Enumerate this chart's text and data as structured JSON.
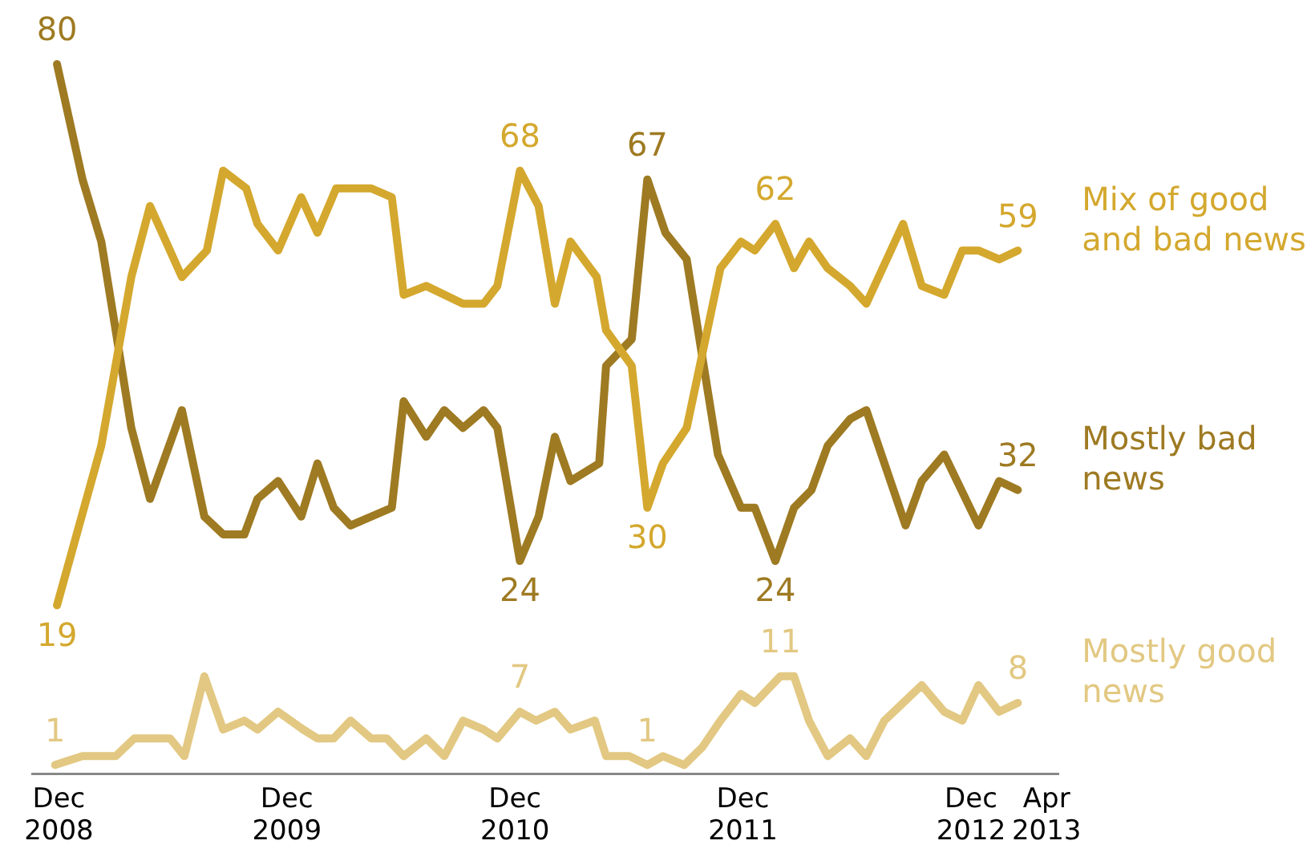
{
  "chart_data": {
    "type": "line",
    "marker": "none",
    "tick_labels": "x",
    "xlim": [
      "2008-10-19",
      "2013-04-20"
    ],
    "xticks": [
      {
        "value": "2008-12",
        "label": "Dec 2008"
      },
      {
        "value": "2009-12",
        "label": "Dec 2009"
      },
      {
        "value": "2010-12",
        "label": "Dec 2010"
      },
      {
        "value": "2011-12",
        "label": "Dec 2011"
      },
      {
        "value": "2012-12",
        "label": "Dec 2012"
      },
      {
        "value": "2013-04",
        "label": "Apr 2013"
      }
    ],
    "series": [
      {
        "name": "Mix of good and bad news",
        "color": "#d4a82e",
        "x": [
          "2008-11-28",
          "2009-02-07",
          "2009-03-27",
          "2009-04-26",
          "2009-06-16",
          "2009-07-26",
          "2009-08-21",
          "2009-09-27",
          "2009-10-15",
          "2009-11-17",
          "2009-12-24",
          "2010-01-19",
          "2010-02-18",
          "2010-04-15",
          "2010-05-18",
          "2010-06-06",
          "2010-07-12",
          "2010-09-09",
          "2010-10-12",
          "2010-11-03",
          "2010-12-09",
          "2011-01-08",
          "2011-02-03",
          "2011-02-28",
          "2011-04-11",
          "2011-04-26",
          "2011-06-06",
          "2011-07-01",
          "2011-07-26",
          "2011-09-02",
          "2011-10-26",
          "2011-11-28",
          "2011-12-20",
          "2012-01-22",
          "2012-02-21",
          "2012-03-16",
          "2012-04-15",
          "2012-05-21",
          "2012-06-16",
          "2012-08-14",
          "2012-09-13",
          "2012-10-19",
          "2012-11-17",
          "2012-12-13",
          "2013-01-15",
          "2013-02-14"
        ],
        "values": [
          19,
          37,
          56,
          64,
          56,
          59,
          68,
          66,
          62,
          59,
          65,
          61,
          66,
          66,
          65,
          54,
          55,
          53,
          53,
          55,
          68,
          64,
          53,
          60,
          56,
          50,
          46,
          30,
          35,
          39,
          57,
          60,
          59,
          62,
          57,
          60,
          57,
          55,
          53,
          62,
          55,
          54,
          59,
          59,
          58,
          59
        ],
        "value_labels": [
          "19",
          null,
          null,
          null,
          null,
          null,
          null,
          null,
          null,
          null,
          null,
          null,
          null,
          null,
          null,
          null,
          null,
          null,
          null,
          null,
          "68",
          null,
          null,
          null,
          null,
          null,
          null,
          "30",
          null,
          null,
          null,
          null,
          null,
          "62",
          null,
          null,
          null,
          null,
          null,
          null,
          null,
          null,
          null,
          null,
          null,
          "59"
        ]
      },
      {
        "name": "Mostly bad news",
        "color": "#9e7a22",
        "x": [
          "2008-11-28",
          "2009-01-08",
          "2009-02-07",
          "2009-03-02",
          "2009-03-27",
          "2009-04-26",
          "2009-06-16",
          "2009-07-22",
          "2009-08-21",
          "2009-09-24",
          "2009-10-15",
          "2009-11-17",
          "2009-12-24",
          "2010-01-19",
          "2010-02-14",
          "2010-03-13",
          "2010-05-18",
          "2010-06-06",
          "2010-07-12",
          "2010-08-10",
          "2010-09-09",
          "2010-10-12",
          "2010-11-03",
          "2010-12-09",
          "2011-01-08",
          "2011-02-03",
          "2011-02-28",
          "2011-04-15",
          "2011-04-26",
          "2011-06-06",
          "2011-07-01",
          "2011-07-30",
          "2011-09-02",
          "2011-10-22",
          "2011-11-28",
          "2011-12-20",
          "2012-01-22",
          "2012-02-21",
          "2012-03-20",
          "2012-04-15",
          "2012-05-21",
          "2012-06-16",
          "2012-07-15",
          "2012-08-18",
          "2012-09-13",
          "2012-10-19",
          "2012-12-13",
          "2013-01-15",
          "2013-02-14"
        ],
        "values": [
          80,
          67,
          60,
          50,
          39,
          31,
          41,
          29,
          27,
          27,
          31,
          33,
          29,
          35,
          30,
          28,
          30,
          42,
          38,
          41,
          39,
          41,
          39,
          24,
          29,
          38,
          33,
          35,
          46,
          49,
          67,
          61,
          58,
          36,
          30,
          30,
          24,
          30,
          32,
          37,
          40,
          41,
          35,
          28,
          33,
          36,
          28,
          33,
          32
        ],
        "value_labels": [
          "80",
          null,
          null,
          null,
          null,
          null,
          null,
          null,
          null,
          null,
          null,
          null,
          null,
          null,
          null,
          null,
          null,
          null,
          null,
          null,
          null,
          null,
          null,
          "24",
          null,
          null,
          null,
          null,
          null,
          null,
          "67",
          null,
          null,
          null,
          null,
          null,
          "24",
          null,
          null,
          null,
          null,
          null,
          null,
          null,
          null,
          null,
          null,
          null,
          "32"
        ]
      },
      {
        "name": "Mostly good news",
        "color": "#e2c882",
        "x": [
          "2008-11-25",
          "2009-01-08",
          "2009-03-02",
          "2009-04-01",
          "2009-05-28",
          "2009-06-20",
          "2009-07-22",
          "2009-08-21",
          "2009-09-24",
          "2009-10-15",
          "2009-11-17",
          "2009-12-27",
          "2010-01-19",
          "2010-02-14",
          "2010-03-13",
          "2010-04-15",
          "2010-05-10",
          "2010-06-06",
          "2010-07-12",
          "2010-08-10",
          "2010-09-09",
          "2010-10-12",
          "2010-11-03",
          "2010-12-09",
          "2011-01-04",
          "2011-02-03",
          "2011-02-28",
          "2011-04-08",
          "2011-04-26",
          "2011-06-02",
          "2011-07-01",
          "2011-07-26",
          "2011-08-29",
          "2011-09-27",
          "2011-10-26",
          "2011-11-28",
          "2011-12-20",
          "2012-01-30",
          "2012-02-21",
          "2012-03-16",
          "2012-04-15",
          "2012-05-21",
          "2012-06-16",
          "2012-07-15",
          "2012-09-13",
          "2012-10-19",
          "2012-11-17",
          "2012-12-13",
          "2013-01-15",
          "2013-02-14"
        ],
        "values": [
          1,
          2,
          2,
          4,
          4,
          2,
          11,
          5,
          6,
          5,
          7,
          5,
          4,
          4,
          6,
          4,
          4,
          2,
          4,
          2,
          6,
          5,
          4,
          7,
          6,
          7,
          5,
          6,
          2,
          2,
          1,
          2,
          1,
          3,
          6,
          9,
          8,
          11,
          11,
          6,
          2,
          4,
          2,
          6,
          10,
          7,
          6,
          10,
          7,
          8
        ],
        "value_labels": [
          "1",
          null,
          null,
          null,
          null,
          null,
          null,
          null,
          null,
          null,
          null,
          null,
          null,
          null,
          null,
          null,
          null,
          null,
          null,
          null,
          null,
          null,
          null,
          "7",
          null,
          null,
          null,
          null,
          null,
          null,
          "1",
          null,
          null,
          null,
          null,
          null,
          null,
          "11",
          null,
          null,
          null,
          null,
          null,
          null,
          null,
          null,
          null,
          null,
          null,
          "8"
        ]
      }
    ]
  }
}
